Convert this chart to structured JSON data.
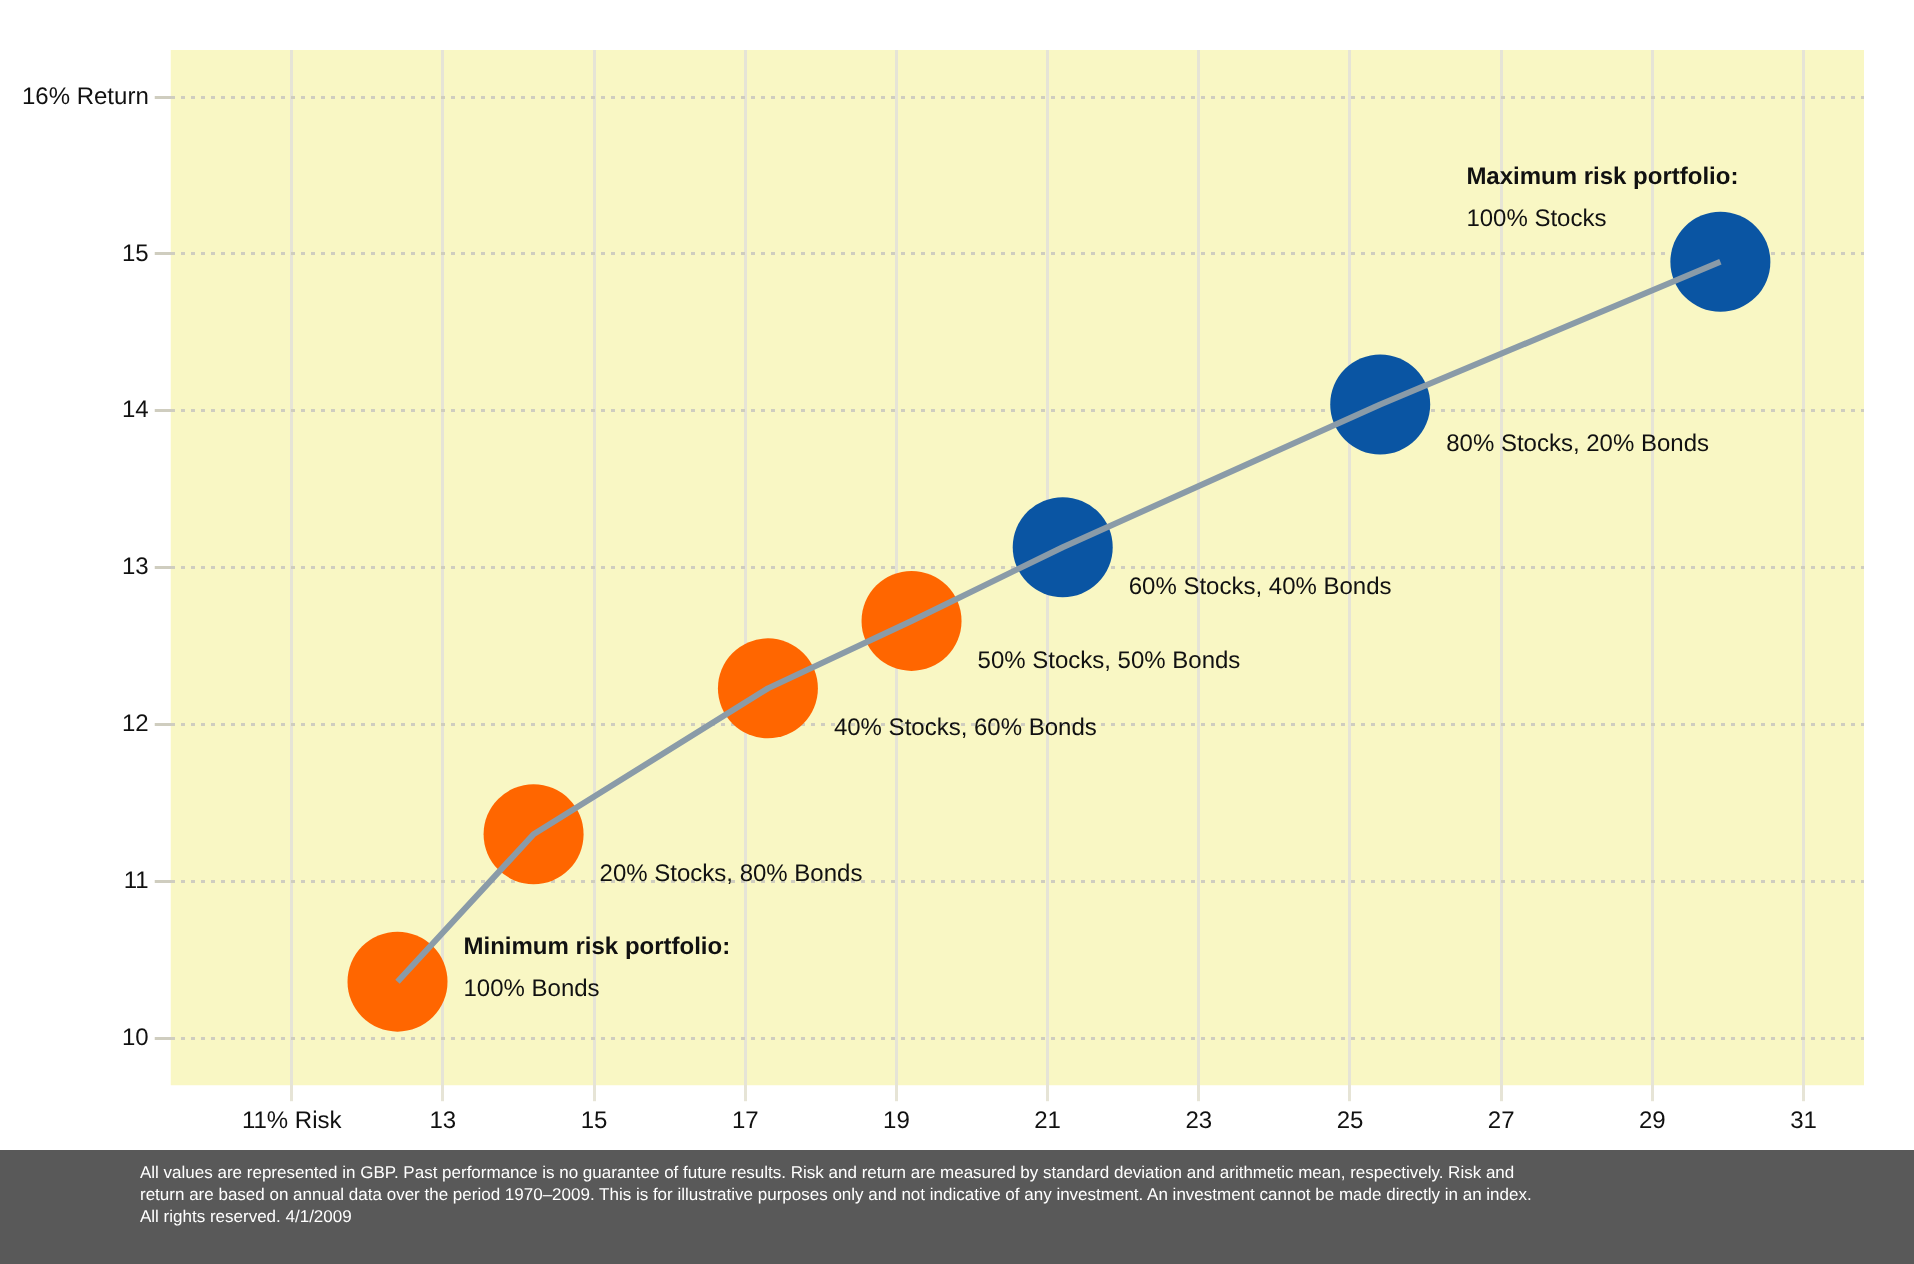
{
  "chart_data": {
    "type": "line",
    "x": [
      12.4,
      14.2,
      17.3,
      19.2,
      21.2,
      25.4,
      29.9
    ],
    "series": [
      {
        "color": "#8a9ba8",
        "values": [
          10.36,
          11.3,
          12.23,
          12.66,
          13.13,
          14.04,
          14.95
        ]
      },
      {
        "type": "bubble",
        "values": [
          10.36,
          11.3,
          12.23,
          12.66,
          13.13,
          14.04,
          14.95
        ],
        "sizes": [
          1,
          1,
          1,
          1,
          1,
          1,
          1
        ],
        "colors": [
          "#ff6600",
          "#ff6600",
          "#ff6600",
          "#ff6600",
          "#0a55a3",
          "#0a55a3",
          "#0a55a3"
        ]
      }
    ],
    "xlim": [
      9.4,
      31.8
    ],
    "ylim": [
      9.7,
      16.3
    ],
    "xticks": [
      {
        "value": 11,
        "label": "11% Risk"
      },
      13,
      15,
      17,
      19,
      21,
      23,
      25,
      27,
      29,
      31
    ],
    "yticks": [
      10,
      11,
      12,
      13,
      14,
      15,
      {
        "value": 16,
        "label": "16% Return"
      }
    ],
    "grid": true,
    "legend": false,
    "annotations": [
      {
        "text": "Minimum risk portfolio:\n100% Bonds",
        "x": 12.4,
        "y": 10.36
      },
      {
        "text": "20% Stocks, 80% Bonds",
        "x": 14.2,
        "y": 11.3
      },
      {
        "text": "40% Stocks, 60% Bonds",
        "x": 17.3,
        "y": 12.23
      },
      {
        "text": "50% Stocks, 50% Bonds",
        "x": 19.2,
        "y": 12.66
      },
      {
        "text": "60% Stocks, 40% Bonds",
        "x": 21.2,
        "y": 13.13
      },
      {
        "text": "80% Stocks, 20% Bonds",
        "x": 25.4,
        "y": 14.04
      },
      {
        "text": "Maximum risk portfolio:\n100% Stocks",
        "x": 29.9,
        "y": 14.95
      },
      "All values are represented in GBP. Past performance is no guarantee of future results. Risk and return are measured by standard deviation and arithmetic mean, respectively. Risk and return are based on annual data over the period 1970–2009. This is for illustrative purposes only and not indicative of any investment. An investment cannot be made directly in an index. All rights reserved. 4/1/2009"
    ]
  }
}
